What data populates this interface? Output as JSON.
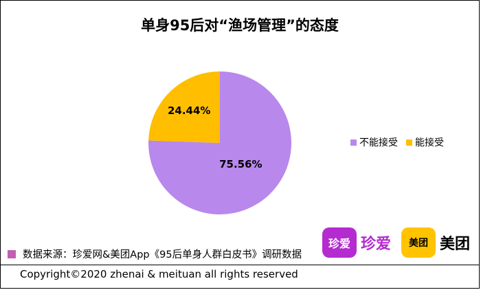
{
  "title": "单身95后对“渔场管理”的态度",
  "chart_data": {
    "type": "pie",
    "title": "单身95后对“渔场管理”的态度",
    "categories": [
      "不能接受",
      "能接受"
    ],
    "values": [
      75.56,
      24.44
    ],
    "labels": [
      "75.56%",
      "24.44%"
    ],
    "colors": [
      "#b888ec",
      "#ffbe00"
    ],
    "start_angle_deg": 0,
    "direction": "clockwise",
    "legend_position": "right"
  },
  "legend": [
    {
      "label": "不能接受",
      "color": "#b888ec"
    },
    {
      "label": "能接受",
      "color": "#ffbe00"
    }
  ],
  "source": "数据来源：珍爱网&美团App《95后单身人群白皮书》调研数据",
  "source_mark_color": "#c060b0",
  "logos": {
    "zhenai_badge": "珍爱",
    "zhenai_text": "珍爱",
    "meituan_badge": "美团",
    "meituan_text": "美团"
  },
  "copyright": "Copyright©2020 zhenai & meituan all rights reserved"
}
